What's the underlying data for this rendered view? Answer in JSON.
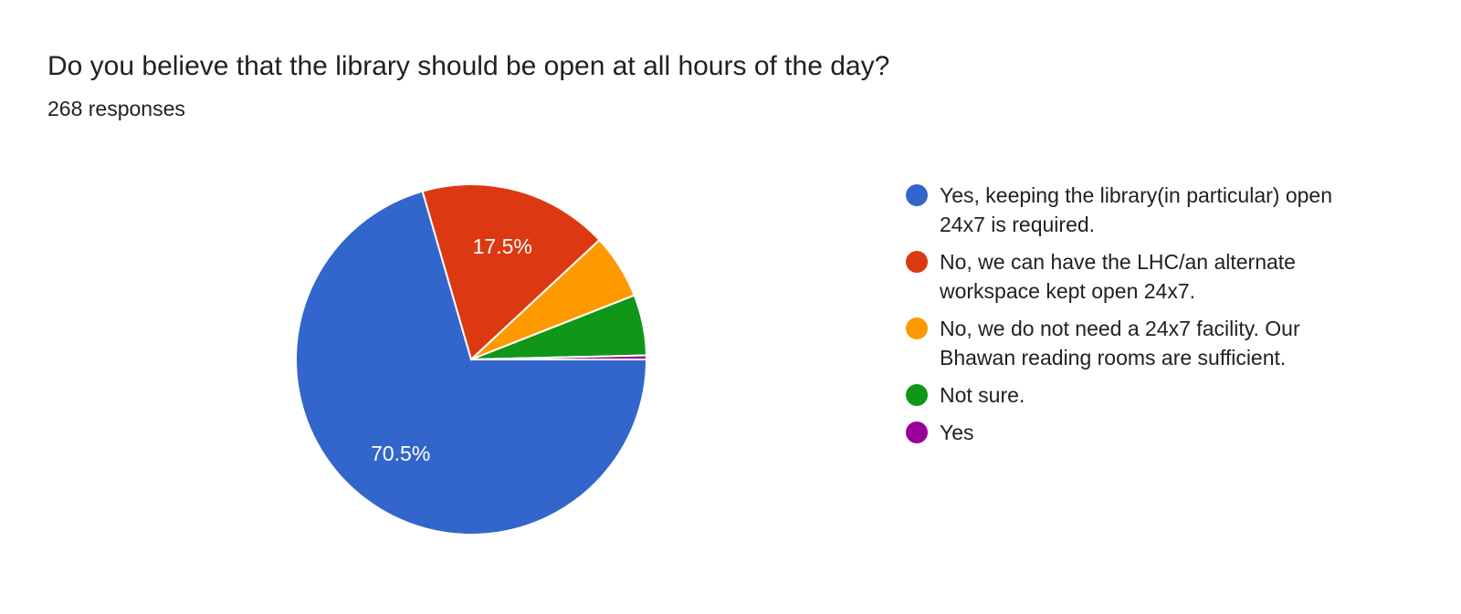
{
  "title": "Do you believe that the library should be open at all hours of the day?",
  "subtitle": "268 responses",
  "chart_data": {
    "type": "pie",
    "start_angle": "3 o'clock, clockwise",
    "total": 268,
    "slices": [
      {
        "label": "Yes, keeping the library(in particular) open 24x7 is required.",
        "count": 189,
        "percent": 70.5,
        "data_label": "70.5%",
        "color": "#3366cc"
      },
      {
        "label": "No, we can have the LHC/an alternate workspace kept open 24x7.",
        "count": 47,
        "percent": 17.5,
        "data_label": "17.5%",
        "color": "#dc3912"
      },
      {
        "label": "No, we do not need a 24x7 facility. Our Bhawan reading rooms are sufficient.",
        "count": 16,
        "percent": 6.0,
        "data_label": "",
        "color": "#ff9900"
      },
      {
        "label": "Not sure.",
        "count": 15,
        "percent": 5.6,
        "data_label": "",
        "color": "#109618"
      },
      {
        "label": "Yes",
        "count": 1,
        "percent": 0.4,
        "data_label": "",
        "color": "#990099"
      }
    ],
    "legend_position": "right"
  }
}
